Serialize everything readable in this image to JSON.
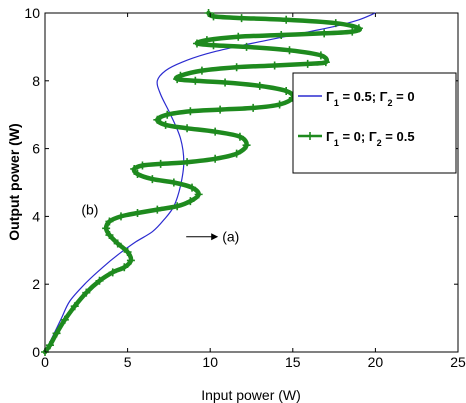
{
  "chart_data": {
    "type": "line",
    "title": "",
    "xlabel": "Input power (W)",
    "ylabel": "Output power (W)",
    "xlim": [
      0,
      25
    ],
    "ylim": [
      0,
      10
    ],
    "xticks": [
      0,
      5,
      10,
      15,
      20,
      25
    ],
    "yticks": [
      0,
      2,
      4,
      6,
      8,
      10
    ],
    "grid": false,
    "legend_position": "right",
    "legend": [
      {
        "label_parts": [
          "Γ",
          "1",
          " = 0.5; Γ",
          "2",
          " = 0"
        ],
        "color": "#2b2bd0"
      },
      {
        "label_parts": [
          "Γ",
          "1",
          " = 0;   Γ",
          "2",
          " = 0.5"
        ],
        "color": "#1e8a1e"
      }
    ],
    "annotations": [
      {
        "text": "(a)",
        "x": 10.0,
        "y": 3.4
      },
      {
        "text": "(b)",
        "x": 3.6,
        "y": 4.0
      }
    ],
    "series": [
      {
        "name": "Γ1 = 0.5; Γ2 = 0",
        "color": "#2b2bd0",
        "marker": "none",
        "x": [
          0,
          0.5,
          1.0,
          1.5,
          2.5,
          3.5,
          4.5,
          5.5,
          6.5,
          7.2,
          7.8,
          8.2,
          8.4,
          8.2,
          7.6,
          7.0,
          6.8,
          7.3,
          8.3,
          9.8,
          11.5,
          13.5,
          15.5,
          17.5,
          19.0,
          20.0
        ],
        "y": [
          0,
          0.5,
          1.0,
          1.5,
          2.05,
          2.5,
          2.9,
          3.25,
          3.55,
          3.9,
          4.3,
          4.9,
          5.6,
          6.3,
          7.0,
          7.6,
          8.0,
          8.3,
          8.55,
          8.8,
          9.0,
          9.2,
          9.4,
          9.6,
          9.8,
          10.0
        ]
      },
      {
        "name": "Γ1 = 0;   Γ2 = 0.5",
        "color": "#1e8a1e",
        "marker": "+",
        "x": [
          0,
          0.3,
          0.7,
          1.2,
          1.8,
          2.5,
          3.3,
          4.1,
          4.8,
          5.2,
          5.0,
          4.4,
          3.9,
          3.7,
          3.9,
          4.6,
          5.6,
          6.8,
          8.0,
          8.8,
          9.3,
          8.9,
          7.8,
          6.5,
          5.6,
          5.4,
          5.9,
          7.0,
          8.6,
          10.3,
          11.6,
          12.2,
          11.8,
          10.3,
          8.6,
          7.3,
          6.8,
          7.4,
          8.8,
          10.6,
          12.6,
          14.2,
          15.0,
          14.6,
          13.0,
          10.9,
          9.1,
          8.0,
          8.2,
          9.5,
          11.6,
          13.9,
          15.9,
          17.0,
          16.7,
          14.8,
          12.2,
          10.2,
          9.2,
          9.8,
          11.7,
          14.3,
          16.9,
          18.6,
          19.0,
          17.6,
          14.6,
          11.9,
          10.2,
          9.9
        ],
        "y": [
          0,
          0.2,
          0.55,
          0.95,
          1.35,
          1.75,
          2.1,
          2.35,
          2.5,
          2.7,
          2.95,
          3.2,
          3.45,
          3.65,
          3.85,
          4.0,
          4.1,
          4.2,
          4.3,
          4.45,
          4.65,
          4.85,
          5.0,
          5.1,
          5.25,
          5.4,
          5.5,
          5.55,
          5.6,
          5.7,
          5.85,
          6.1,
          6.35,
          6.5,
          6.6,
          6.7,
          6.85,
          7.0,
          7.1,
          7.15,
          7.2,
          7.3,
          7.5,
          7.7,
          7.85,
          7.95,
          8.0,
          8.05,
          8.15,
          8.3,
          8.4,
          8.45,
          8.5,
          8.55,
          8.75,
          8.9,
          9.0,
          9.05,
          9.1,
          9.2,
          9.3,
          9.35,
          9.4,
          9.45,
          9.55,
          9.7,
          9.8,
          9.85,
          9.9,
          10.0
        ]
      }
    ]
  }
}
